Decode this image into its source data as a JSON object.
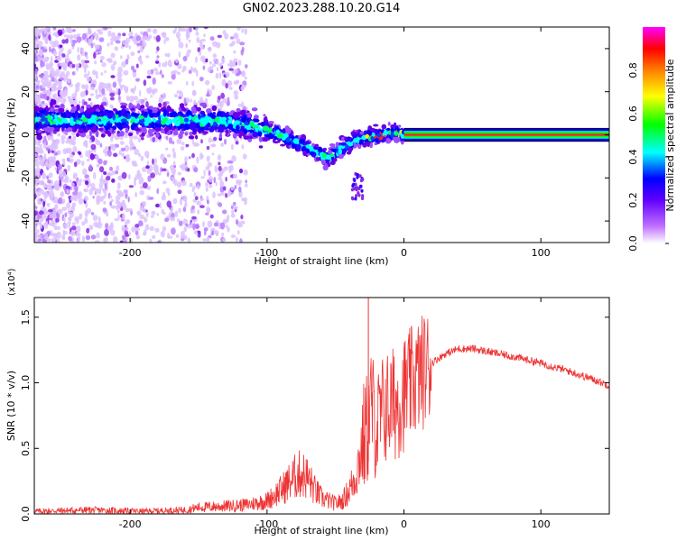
{
  "figure": {
    "title": "GN02.2023.288.10.20.G14"
  },
  "chart_data": [
    {
      "type": "heatmap",
      "xlabel": "Height of straight line (km)",
      "ylabel": "Frequency (Hz)",
      "xlim": [
        -270,
        150
      ],
      "ylim": [
        -50,
        50
      ],
      "xticks": [
        -200,
        -100,
        0,
        100
      ],
      "yticks": [
        -40,
        -20,
        0,
        20,
        40
      ],
      "colorbar": {
        "label": "Normalized spectral amplitude",
        "range": [
          0,
          1
        ],
        "ticks": [
          "0.0",
          "0.2",
          "0.4",
          "0.6",
          "0.8"
        ],
        "colors": [
          "#ffffff",
          "#a000ff",
          "#0000ff",
          "#00ffff",
          "#00ff00",
          "#ffff00",
          "#ff8000",
          "#ff0000",
          "#ff00ff"
        ]
      },
      "ridge": {
        "x": [
          -270,
          -220,
          -170,
          -130,
          -110,
          -90,
          -70,
          -55,
          -45,
          -35,
          -25,
          -15,
          -5,
          0,
          150
        ],
        "y": [
          7,
          7,
          7,
          6,
          4,
          0,
          -6,
          -11,
          -6,
          -2,
          -1,
          0,
          1,
          0,
          0
        ]
      }
    },
    {
      "type": "line",
      "xlabel": "Height of straight line (km)",
      "ylabel": "SNR (10 * v/v)",
      "multiplier": "(x10⁴)",
      "xlim": [
        -270,
        150
      ],
      "ylim": [
        0,
        1.65
      ],
      "xticks": [
        -200,
        -100,
        0,
        100
      ],
      "yticks": [
        "0.0",
        "0.5",
        "1.0",
        "1.5"
      ],
      "color": "#ee3333",
      "series": [
        {
          "x": [
            -270,
            -230,
            -190,
            -160,
            -150,
            -130,
            -115,
            -100,
            -90,
            -80,
            -75,
            -70,
            -65,
            -60,
            -50,
            -45,
            -40,
            -35,
            -30,
            -26,
            -24,
            -22,
            -20,
            -17,
            -15,
            -10,
            -5,
            0,
            10,
            20,
            30,
            40,
            50,
            60,
            80,
            100,
            120,
            140,
            150
          ],
          "y": [
            0.02,
            0.03,
            0.02,
            0.03,
            0.05,
            0.06,
            0.07,
            0.1,
            0.18,
            0.28,
            0.31,
            0.27,
            0.18,
            0.12,
            0.08,
            0.1,
            0.18,
            0.3,
            0.55,
            0.68,
            0.85,
            0.75,
            0.65,
            0.72,
            0.8,
            0.82,
            0.85,
            0.92,
            1.05,
            1.15,
            1.22,
            1.26,
            1.26,
            1.24,
            1.2,
            1.15,
            1.09,
            1.02,
            0.98
          ]
        }
      ]
    }
  ]
}
